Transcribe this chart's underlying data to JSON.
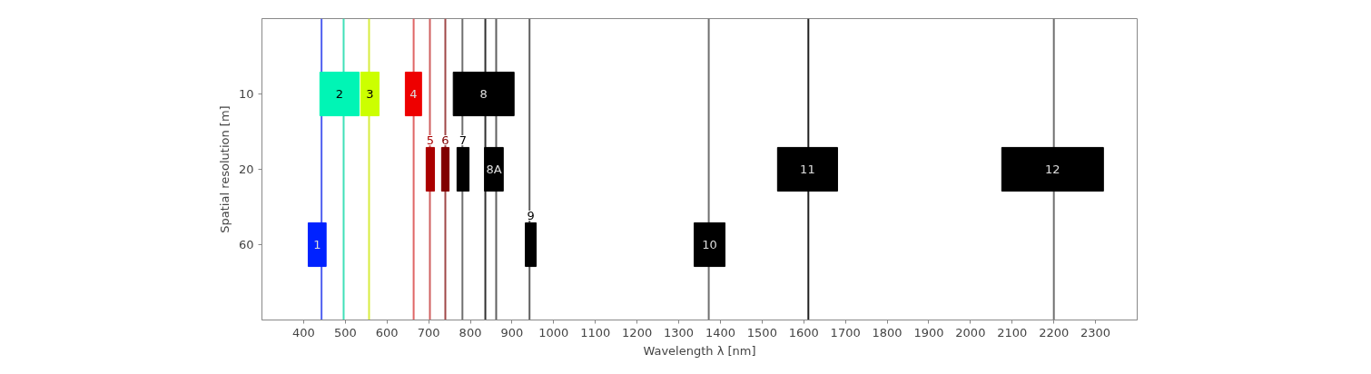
{
  "chart_data": {
    "type": "bar",
    "orientation": "horizontal",
    "xlabel": "Wavelength λ [nm]",
    "ylabel": "Spatial resolution [m]",
    "categories": [
      "10",
      "20",
      "60"
    ],
    "xlim": [
      300,
      2400
    ],
    "xticks": [
      400,
      500,
      600,
      700,
      800,
      900,
      1000,
      1100,
      1200,
      1300,
      1400,
      1500,
      1600,
      1700,
      1800,
      1900,
      2000,
      2100,
      2200,
      2300
    ],
    "grid": false,
    "series": [
      {
        "name": "1",
        "color": "#0022ff",
        "base": [
          null,
          null,
          411
        ],
        "values": [
          null,
          null,
          43
        ]
      },
      {
        "name": "2",
        "color": "#00f5b5",
        "base": [
          439,
          null,
          null
        ],
        "values": [
          94,
          null,
          null
        ]
      },
      {
        "name": "3",
        "color": "#ccff00",
        "base": [
          537,
          null,
          null
        ],
        "values": [
          44,
          null,
          null
        ]
      },
      {
        "name": "4",
        "color": "#ee0000",
        "base": [
          644,
          null,
          null
        ],
        "values": [
          39,
          null,
          null
        ]
      },
      {
        "name": "5",
        "color": "#aa0000",
        "base": [
          null,
          694,
          null
        ],
        "values": [
          null,
          20,
          null
        ]
      },
      {
        "name": "6",
        "color": "#800000",
        "base": [
          null,
          731,
          null
        ],
        "values": [
          null,
          18,
          null
        ]
      },
      {
        "name": "7",
        "color": "#000000",
        "base": [
          null,
          768,
          null
        ],
        "values": [
          null,
          29,
          null
        ]
      },
      {
        "name": "8",
        "color": "#000000",
        "base": [
          759,
          null,
          null
        ],
        "values": [
          146,
          null,
          null
        ]
      },
      {
        "name": "8A",
        "color": "#000000",
        "base": [
          null,
          834,
          null
        ],
        "values": [
          null,
          45,
          null
        ]
      },
      {
        "name": "9",
        "color": "#000000",
        "base": [
          null,
          null,
          932
        ],
        "values": [
          null,
          null,
          26
        ]
      },
      {
        "name": "10",
        "color": "#000000",
        "base": [
          null,
          null,
          1337
        ],
        "values": [
          null,
          null,
          74
        ]
      },
      {
        "name": "11",
        "color": "#000000",
        "base": [
          null,
          1537,
          null
        ],
        "values": [
          null,
          144,
          null
        ]
      },
      {
        "name": "12",
        "color": "#000000",
        "base": [
          null,
          2075,
          null
        ],
        "values": [
          null,
          244,
          null
        ]
      }
    ],
    "ref_lines": [
      {
        "axis": "x",
        "value": 443,
        "color": "#5060f0"
      },
      {
        "axis": "x",
        "value": 496,
        "color": "#40e0b8"
      },
      {
        "axis": "x",
        "value": 557,
        "color": "#d8ec40"
      },
      {
        "axis": "x",
        "value": 664,
        "color": "#e06666"
      },
      {
        "axis": "x",
        "value": 703,
        "color": "#d06060"
      },
      {
        "axis": "x",
        "value": 740,
        "color": "#a04848"
      },
      {
        "axis": "x",
        "value": 781,
        "color": "#707070"
      },
      {
        "axis": "x",
        "value": 836,
        "color": "#303030"
      },
      {
        "axis": "x",
        "value": 862,
        "color": "#606060"
      },
      {
        "axis": "x",
        "value": 942,
        "color": "#606060"
      },
      {
        "axis": "x",
        "value": 1372,
        "color": "#707070"
      },
      {
        "axis": "x",
        "value": 1611,
        "color": "#202020"
      },
      {
        "axis": "x",
        "value": 2200,
        "color": "#707070"
      }
    ]
  }
}
